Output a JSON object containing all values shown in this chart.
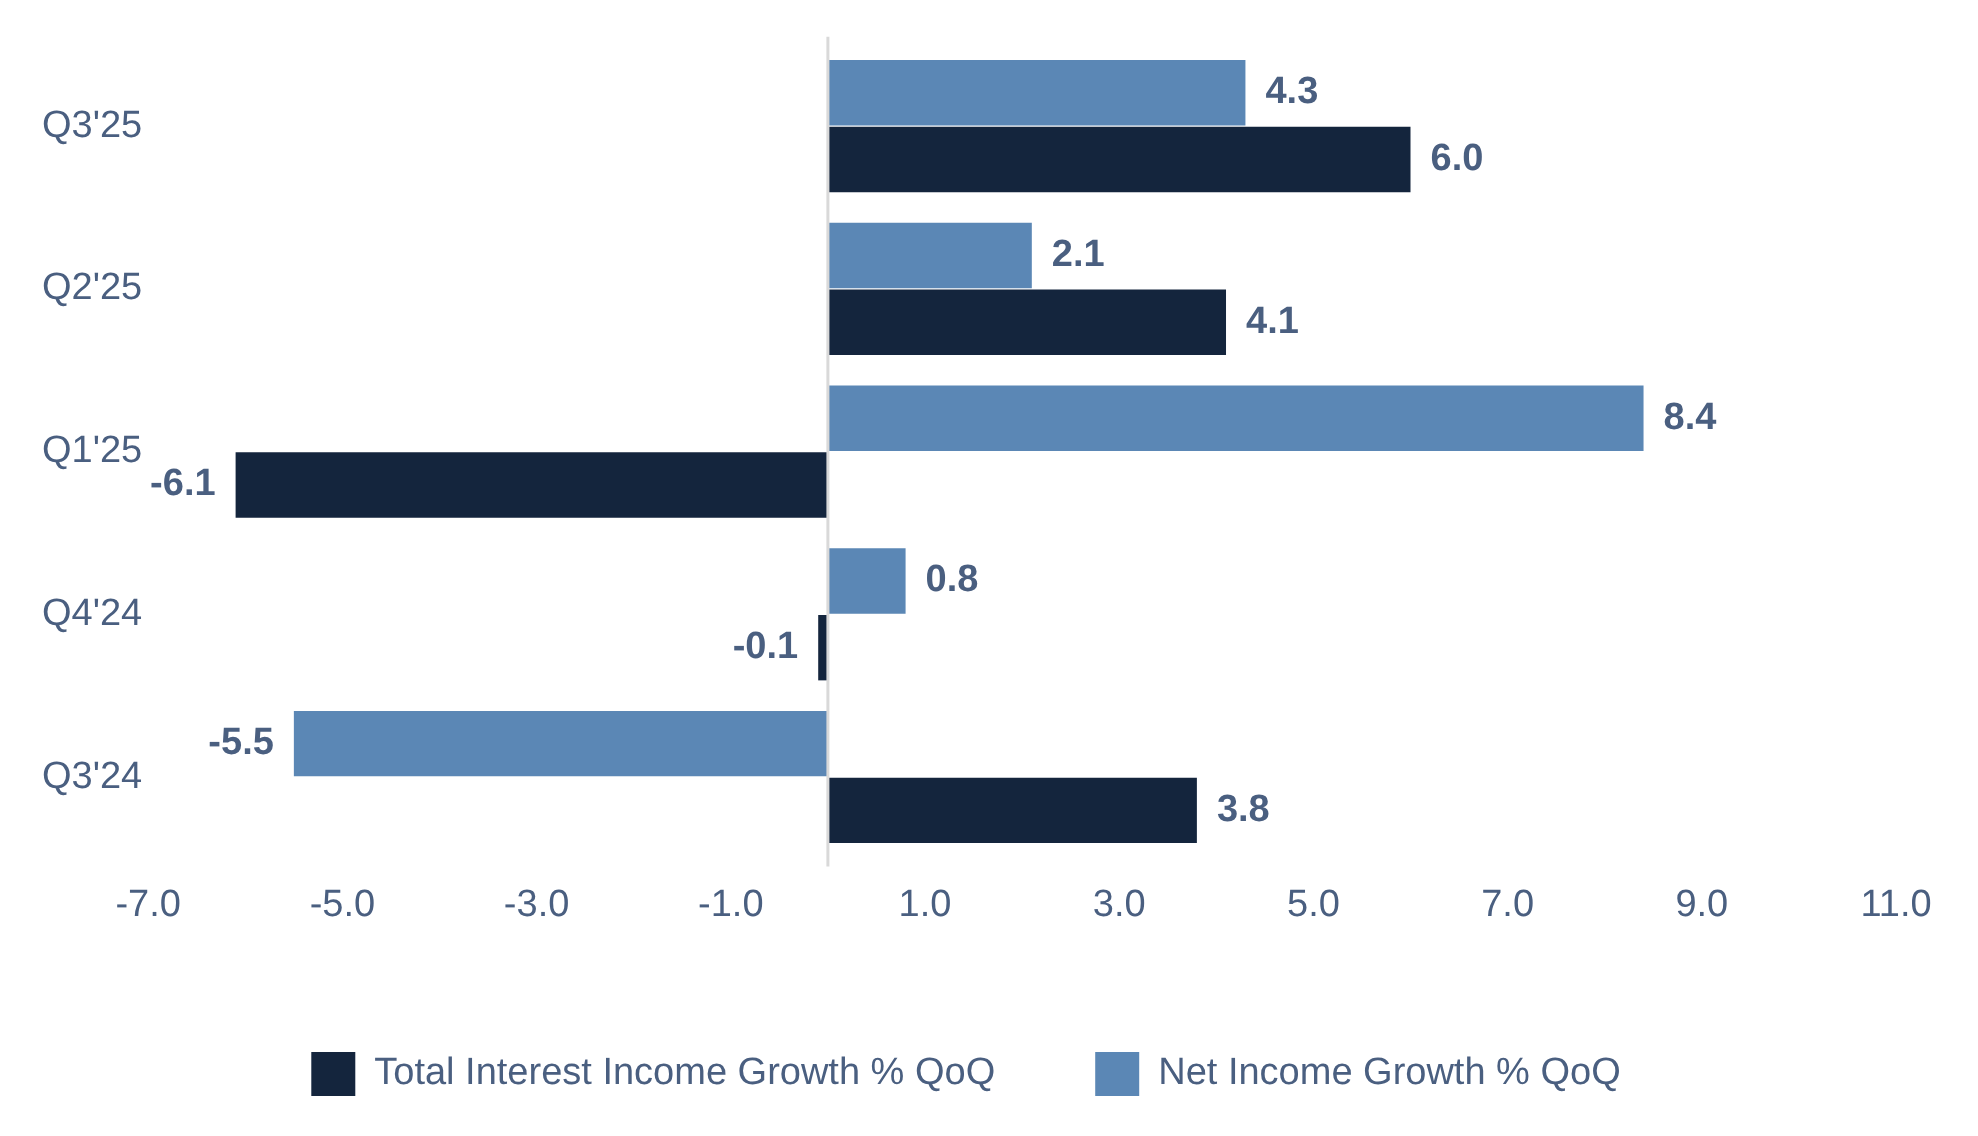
{
  "chart_data": {
    "type": "bar",
    "orientation": "horizontal",
    "categories": [
      "Q3'25",
      "Q2'25",
      "Q1'25",
      "Q4'24",
      "Q3'24"
    ],
    "series": [
      {
        "name": "Total Interest Income Growth % QoQ",
        "color": "#14253d",
        "values": [
          6.0,
          4.1,
          -6.1,
          -0.1,
          3.8
        ],
        "value_labels": [
          "6.0",
          "4.1",
          "-6.1",
          "-0.1",
          "3.8"
        ]
      },
      {
        "name": "Net Income Growth % QoQ",
        "color": "#5b87b5",
        "values": [
          4.3,
          2.1,
          8.4,
          0.8,
          -5.5
        ],
        "value_labels": [
          "4.3",
          "2.1",
          "8.4",
          "0.8",
          "-5.5"
        ]
      }
    ],
    "xlim": [
      -7,
      11
    ],
    "xticks": [
      {
        "value": -7,
        "label": "-7.0"
      },
      {
        "value": -5,
        "label": "-5.0"
      },
      {
        "value": -3,
        "label": "-3.0"
      },
      {
        "value": -1,
        "label": "-1.0"
      },
      {
        "value": 1,
        "label": "1.0"
      },
      {
        "value": 3,
        "label": "3.0"
      },
      {
        "value": 5,
        "label": "5.0"
      },
      {
        "value": 7,
        "label": "7.0"
      },
      {
        "value": 9,
        "label": "9.0"
      },
      {
        "value": 11,
        "label": "11.0"
      }
    ],
    "grid": false,
    "legend": "bottom"
  }
}
